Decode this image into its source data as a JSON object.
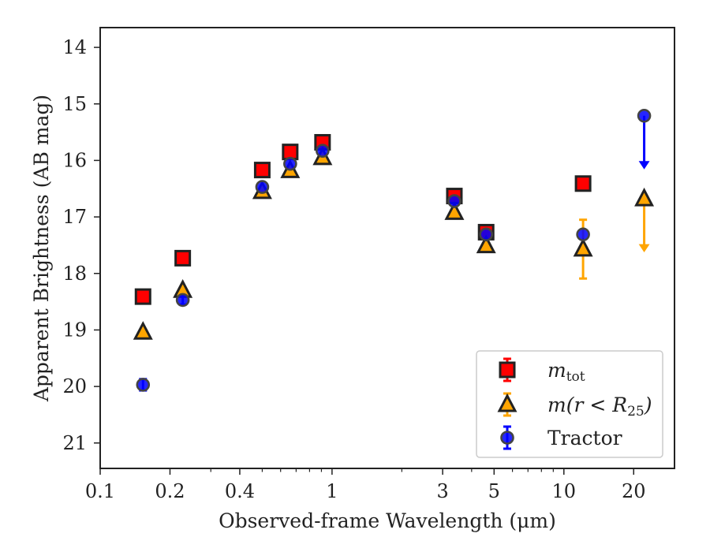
{
  "chart_data": {
    "type": "scatter",
    "title": "",
    "xlabel": "Observed-frame Wavelength (μm)",
    "ylabel": "Apparent Brightness (AB mag)",
    "xscale": "log",
    "xlim": [
      0.1,
      30
    ],
    "ylim": [
      21.45,
      13.65
    ],
    "y_inverted": true,
    "x_ticks": [
      0.1,
      0.2,
      0.4,
      1,
      3,
      5,
      10,
      20
    ],
    "x_tick_labels": [
      "0.1",
      "0.2",
      "0.4",
      "1",
      "3",
      "5",
      "10",
      "20"
    ],
    "y_ticks": [
      14,
      15,
      16,
      17,
      18,
      19,
      20,
      21
    ],
    "y_tick_labels": [
      "14",
      "15",
      "16",
      "17",
      "18",
      "19",
      "20",
      "21"
    ],
    "grid": false,
    "legend_position": "lower right",
    "series": [
      {
        "name": "m_tot",
        "legend_label": "m",
        "legend_sub": "tot",
        "marker": "square",
        "color": "#ff0000",
        "edge_color": "#222222",
        "points": [
          {
            "x": 0.153,
            "y": 18.41
          },
          {
            "x": 0.227,
            "y": 17.73
          },
          {
            "x": 0.5,
            "y": 16.17
          },
          {
            "x": 0.66,
            "y": 15.85
          },
          {
            "x": 0.91,
            "y": 15.68
          },
          {
            "x": 3.37,
            "y": 16.63
          },
          {
            "x": 4.62,
            "y": 17.27
          },
          {
            "x": 12.1,
            "y": 16.41
          }
        ]
      },
      {
        "name": "m(r < R_25)",
        "legend_label": "m(r < R",
        "legend_sub": "25",
        "legend_suffix": ")",
        "marker": "triangle",
        "color": "#ffa500",
        "edge_color": "#222222",
        "points": [
          {
            "x": 0.153,
            "y": 19.04
          },
          {
            "x": 0.227,
            "y": 18.3
          },
          {
            "x": 0.5,
            "y": 16.55
          },
          {
            "x": 0.66,
            "y": 16.18
          },
          {
            "x": 0.91,
            "y": 15.95
          },
          {
            "x": 3.37,
            "y": 16.92
          },
          {
            "x": 4.62,
            "y": 17.51
          },
          {
            "x": 12.1,
            "y": 17.57,
            "err": 0.52
          },
          {
            "x": 22.2,
            "y": 16.68,
            "upper_limit": true
          }
        ]
      },
      {
        "name": "Tractor",
        "legend_label": "Tractor",
        "marker": "circle",
        "color": "#0000ff",
        "edge_color": "#444444",
        "points": [
          {
            "x": 0.153,
            "y": 19.97,
            "err": 0.1
          },
          {
            "x": 0.227,
            "y": 18.47,
            "err": 0.08
          },
          {
            "x": 0.5,
            "y": 16.47
          },
          {
            "x": 0.66,
            "y": 16.06
          },
          {
            "x": 0.91,
            "y": 15.83
          },
          {
            "x": 3.37,
            "y": 16.72
          },
          {
            "x": 4.62,
            "y": 17.31
          },
          {
            "x": 12.1,
            "y": 17.31
          },
          {
            "x": 22.2,
            "y": 15.21,
            "upper_limit": true
          }
        ]
      }
    ]
  }
}
